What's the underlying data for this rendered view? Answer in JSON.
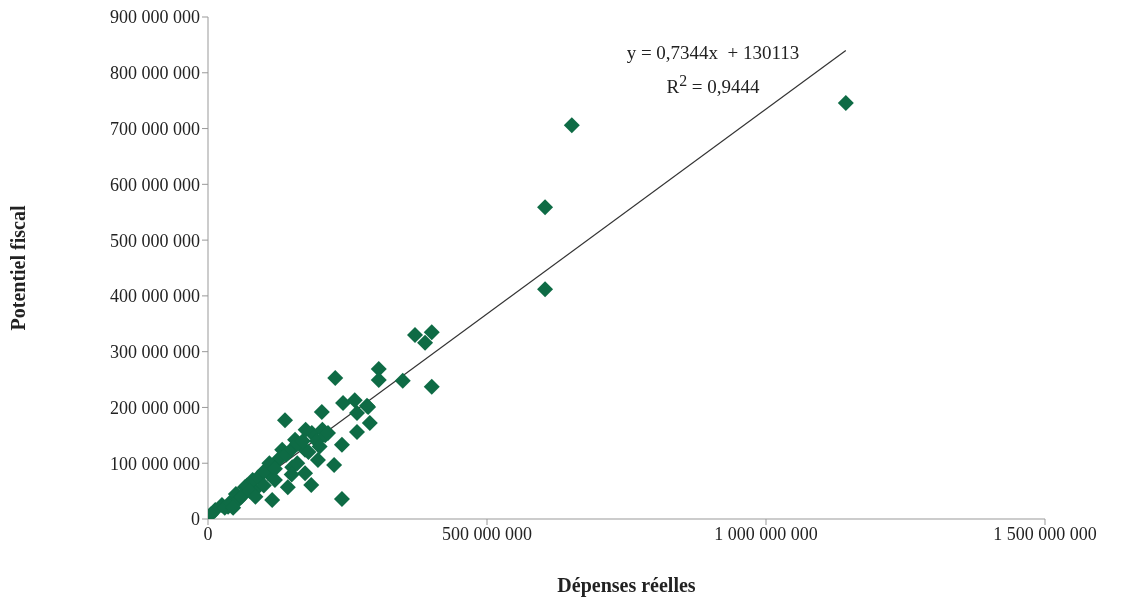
{
  "chart_data": {
    "type": "scatter",
    "xlabel": "Dépenses réelles",
    "ylabel": "Potentiel fiscal",
    "xlim": [
      0,
      1500000000
    ],
    "ylim": [
      0,
      900000000
    ],
    "xticks": [
      0,
      500000000,
      1000000000,
      1500000000
    ],
    "yticks": [
      0,
      100000000,
      200000000,
      300000000,
      400000000,
      500000000,
      600000000,
      700000000,
      800000000,
      900000000
    ],
    "marker": "diamond",
    "annotations": [
      "y = 0,7344x  + 130113",
      "R$^{2}$ = 0,9444"
    ],
    "series": [
      {
        "color": "#0e6b45",
        "x": [
          1143000000,
          652000000,
          604000000,
          604000000,
          401000000,
          401000000,
          389000000,
          371000000,
          349000000,
          306000000,
          306000000,
          290000000,
          285000000,
          228000000,
          240000000,
          226000000,
          240000000,
          185000000,
          138000000,
          204000000,
          242000000,
          263000000,
          287000000,
          267000000,
          267000000,
          186000000,
          156000000,
          133000000,
          174000000,
          197000000,
          174000000,
          151000000,
          125000000,
          108000000,
          143000000,
          115000000,
          84000000,
          66000000,
          36000000,
          13000000,
          5000000,
          25000000,
          30000000,
          40000000,
          50000000,
          55000000,
          70000000,
          80000000,
          90000000,
          100000000,
          110000000,
          120000000,
          130000000,
          140000000,
          150000000,
          160000000,
          170000000,
          175000000,
          195000000,
          205000000,
          100000000,
          120000000,
          60000000,
          75000000,
          45000000,
          85000000,
          160000000,
          150000000,
          180000000,
          200000000,
          210000000,
          215000000
        ],
        "values": [
          746000000,
          706000000,
          559000000,
          412000000,
          237000000,
          335000000,
          316000000,
          330000000,
          248000000,
          269000000,
          249000000,
          172000000,
          203000000,
          253000000,
          36000000,
          97000000,
          133000000,
          61000000,
          177000000,
          192000000,
          208000000,
          213000000,
          201000000,
          190000000,
          156000000,
          154000000,
          142000000,
          124000000,
          124000000,
          106000000,
          82000000,
          93000000,
          106000000,
          82000000,
          57000000,
          34000000,
          52000000,
          57000000,
          22000000,
          16000000,
          8000000,
          25000000,
          20000000,
          30000000,
          45000000,
          35000000,
          60000000,
          70000000,
          75000000,
          85000000,
          100000000,
          90000000,
          110000000,
          115000000,
          125000000,
          135000000,
          140000000,
          160000000,
          140000000,
          160000000,
          60000000,
          70000000,
          40000000,
          50000000,
          20000000,
          40000000,
          100000000,
          80000000,
          120000000,
          130000000,
          150000000,
          154000000
        ]
      },
      {
        "type": "line",
        "color": "#333333",
        "marker": "none",
        "x": [
          50000000,
          1143000000
        ],
        "values": [
          37000000,
          840000000
        ]
      }
    ]
  }
}
